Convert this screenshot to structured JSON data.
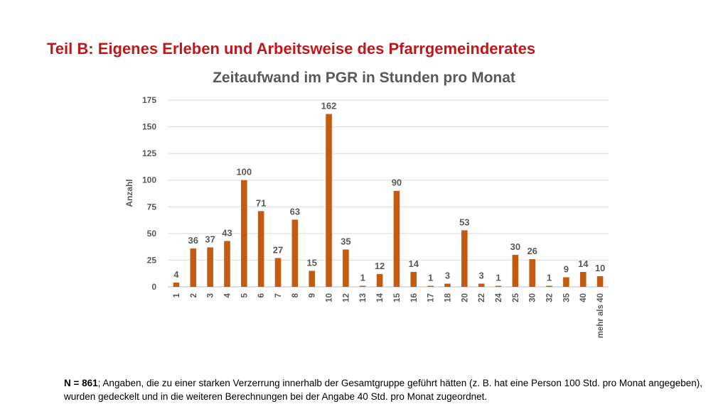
{
  "slide": {
    "title": "Teil B: Eigenes Erleben und Arbeitsweise des Pfarrgemeinderates"
  },
  "footnote": {
    "bold": "N = 861",
    "text": "; Angaben, die zu einer starken Verzerrung innerhalb der Gesamtgruppe geführt hätten (z. B. hat eine Person 100 Std. pro Monat angegeben), wurden gedeckelt und in die weiteren Berechnungen bei der Angabe 40 Std. pro Monat zugeordnet."
  },
  "colors": {
    "bar": "#c55a11",
    "title": "#c0171b",
    "text": "#595959",
    "grid": "#d9d9d9"
  },
  "chart_data": {
    "type": "bar",
    "title": "Zeitaufwand im PGR in Stunden pro Monat",
    "xlabel": "",
    "ylabel": "Anzahl",
    "ylim": [
      0,
      175
    ],
    "yticks": [
      0,
      25,
      50,
      75,
      100,
      125,
      150,
      175
    ],
    "grid": true,
    "legend": "none",
    "data_labels": true,
    "categories": [
      "1",
      "2",
      "3",
      "4",
      "5",
      "6",
      "7",
      "8",
      "9",
      "10",
      "12",
      "13",
      "14",
      "15",
      "16",
      "17",
      "18",
      "20",
      "22",
      "24",
      "25",
      "30",
      "32",
      "35",
      "40",
      "mehr als 40"
    ],
    "values": [
      4,
      36,
      37,
      43,
      100,
      71,
      27,
      63,
      15,
      162,
      35,
      1,
      12,
      90,
      14,
      1,
      3,
      53,
      3,
      1,
      30,
      26,
      1,
      9,
      14,
      10
    ]
  }
}
